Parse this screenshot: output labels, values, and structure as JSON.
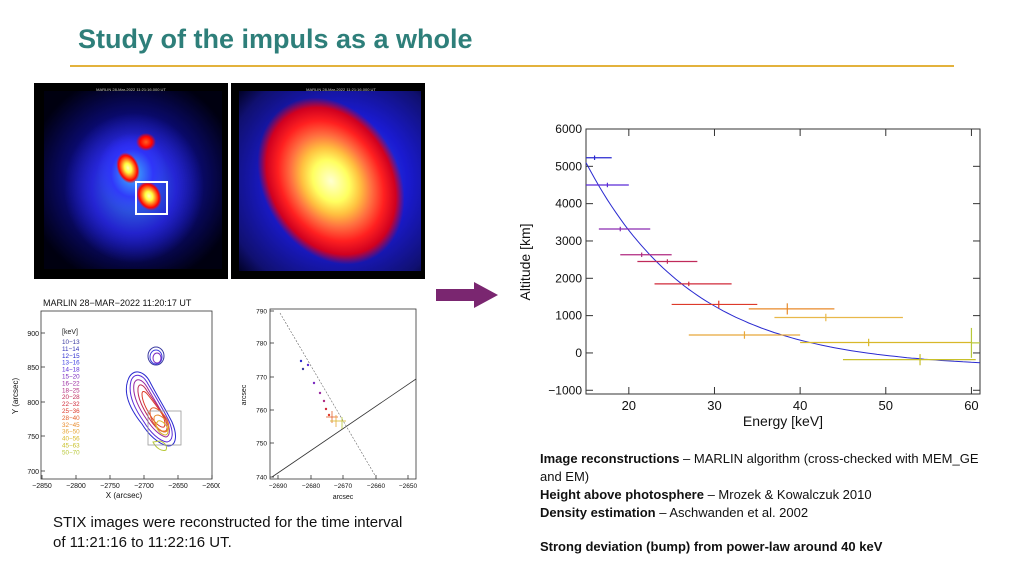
{
  "slide": {
    "title": "Study of the impuls as a whole"
  },
  "images": {
    "map1_header": "MARLIN 28-Mar-2022 11:21:16.000 UT",
    "map2_header": "MARLIN 28-Mar-2022 11:21:16.000 UT"
  },
  "contour_plot": {
    "title": "MARLIN 28−MAR−2022 11:20:17 UT",
    "xlabel": "X (arcsec)",
    "ylabel": "Y (arcsec)",
    "xticks": [
      "−2850",
      "−2800",
      "−2750",
      "−2700",
      "−2650",
      "−2600"
    ],
    "yticks": [
      "700",
      "750",
      "800",
      "850",
      "900"
    ],
    "legend_unit": "[keV]",
    "legend": [
      {
        "label": "10−13",
        "color": "#3a3aa0"
      },
      {
        "label": "11−14",
        "color": "#3434b8"
      },
      {
        "label": "12−15",
        "color": "#2a2ad0"
      },
      {
        "label": "13−16",
        "color": "#3c3ce0"
      },
      {
        "label": "14−18",
        "color": "#5a2ad8"
      },
      {
        "label": "15−20",
        "color": "#7a2ac0"
      },
      {
        "label": "16−22",
        "color": "#9a2aa0"
      },
      {
        "label": "18−25",
        "color": "#b02a80"
      },
      {
        "label": "20−28",
        "color": "#c02a5a"
      },
      {
        "label": "22−32",
        "color": "#d02a3a"
      },
      {
        "label": "25−36",
        "color": "#dd3a2a"
      },
      {
        "label": "28−40",
        "color": "#e3602a"
      },
      {
        "label": "32−45",
        "color": "#e88a2a"
      },
      {
        "label": "36−50",
        "color": "#e8a83a"
      },
      {
        "label": "40−56",
        "color": "#d8b82a"
      },
      {
        "label": "45−63",
        "color": "#c8c02a"
      },
      {
        "label": "50−70",
        "color": "#b8c83a"
      }
    ]
  },
  "position_plot": {
    "ylabel": "arcsec",
    "xlabel": "arcsec",
    "xticks": [
      "−2690",
      "−2680",
      "−2670",
      "−2660",
      "−2650"
    ],
    "yticks": [
      "740",
      "750",
      "760",
      "770",
      "780",
      "790"
    ]
  },
  "chart_data": {
    "type": "scatter",
    "xlabel": "Energy [keV]",
    "ylabel": "Altitude [km]",
    "xlim": [
      15,
      61
    ],
    "ylim": [
      -1100,
      6000
    ],
    "xticks": [
      "20",
      "30",
      "40",
      "50",
      "60"
    ],
    "yticks": [
      "6000",
      "5000",
      "4000",
      "3000",
      "2000",
      "1000",
      "0",
      "−1000"
    ],
    "grid": false,
    "points": [
      {
        "x": 16.0,
        "y": 5230,
        "xerr": [
          1.0,
          2.0
        ],
        "yerr": 0,
        "color": "#2a2ad0"
      },
      {
        "x": 17.5,
        "y": 4500,
        "xerr": [
          2.5,
          2.5
        ],
        "yerr": 0,
        "color": "#5a2ad8"
      },
      {
        "x": 19.0,
        "y": 3320,
        "xerr": [
          2.5,
          3.5
        ],
        "yerr": 0,
        "color": "#8a2ab0"
      },
      {
        "x": 21.5,
        "y": 2630,
        "xerr": [
          2.5,
          3.5
        ],
        "yerr": 0,
        "color": "#b02a80"
      },
      {
        "x": 24.5,
        "y": 2450,
        "xerr": [
          3.5,
          3.5
        ],
        "yerr": 0,
        "color": "#c02a5a"
      },
      {
        "x": 27.0,
        "y": 1850,
        "xerr": [
          4.0,
          5.0
        ],
        "yerr": 0,
        "color": "#d02a3a"
      },
      {
        "x": 30.5,
        "y": 1300,
        "xerr": [
          5.5,
          4.5
        ],
        "yerr": 100,
        "color": "#dd3a2a"
      },
      {
        "x": 38.5,
        "y": 1180,
        "xerr": [
          4.5,
          5.5
        ],
        "yerr": 150,
        "color": "#e88a2a"
      },
      {
        "x": 33.5,
        "y": 480,
        "xerr": [
          6.5,
          6.5
        ],
        "yerr": 100,
        "color": "#e8a83a"
      },
      {
        "x": 43.0,
        "y": 950,
        "xerr": [
          6.0,
          9.0
        ],
        "yerr": 100,
        "color": "#e8b84a"
      },
      {
        "x": 48.0,
        "y": 280,
        "xerr": [
          8.0,
          12.0
        ],
        "yerr": 100,
        "color": "#d8b82a"
      },
      {
        "x": 54.0,
        "y": -180,
        "xerr": [
          9.0,
          6.5
        ],
        "yerr": 150,
        "color": "#c8c02a"
      },
      {
        "x": 60.0,
        "y": 270,
        "xerr": [
          0.0,
          1.0
        ],
        "yerr": 400,
        "color": "#b8c83a"
      }
    ],
    "fit": {
      "type": "power-law",
      "color": "#2a2ad0"
    }
  },
  "notes": {
    "line1_bold": "Image reconstructions",
    "line1_rest": " – MARLIN algorithm (cross-checked with MEM_GE and EM)",
    "line2_bold": "Height above photosphere",
    "line2_rest": " – Mrozek & Kowalczuk 2010",
    "line3_bold": "Density estimation",
    "line3_rest": " – Aschwanden et al. 2002",
    "conclusion": "Strong deviation (bump) from power-law around 40 keV"
  },
  "caption": "STIX images were reconstructed for the time interval of 11:21:16 to 11:22:16 UT.",
  "colors": {
    "title": "#2e7f7a",
    "rule": "#e3b23c",
    "arrow": "#7a2670"
  }
}
